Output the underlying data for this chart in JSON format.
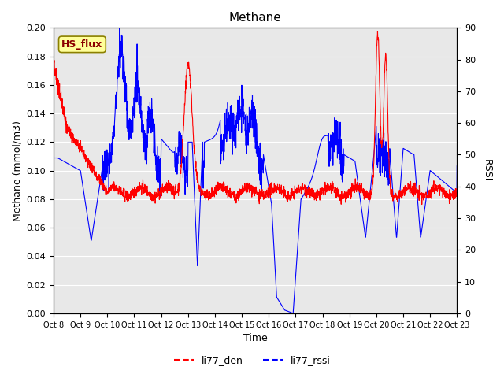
{
  "title": "Methane",
  "xlabel": "Time",
  "ylabel_left": "Methane (mmol/m3)",
  "ylabel_right": "RSSI",
  "ylim_left": [
    0.0,
    0.2
  ],
  "ylim_right": [
    0,
    90
  ],
  "xtick_labels": [
    "Oct 8",
    "Oct 9",
    "Oct 10",
    "Oct 11",
    "Oct 12",
    "Oct 13",
    "Oct 14",
    "Oct 15",
    "Oct 16",
    "Oct 17",
    "Oct 18",
    "Oct 19",
    "Oct 20",
    "Oct 21",
    "Oct 22",
    "Oct 23"
  ],
  "color_red": "#FF0000",
  "color_blue": "#0000FF",
  "plot_bg_color": "#E8E8E8",
  "legend_labels": [
    "li77_den",
    "li77_rssi"
  ],
  "hs_flux_text": "HS_flux",
  "hs_flux_bg": "#FFFF99",
  "hs_flux_border": "#8B8000",
  "hs_flux_text_color": "#8B0000"
}
